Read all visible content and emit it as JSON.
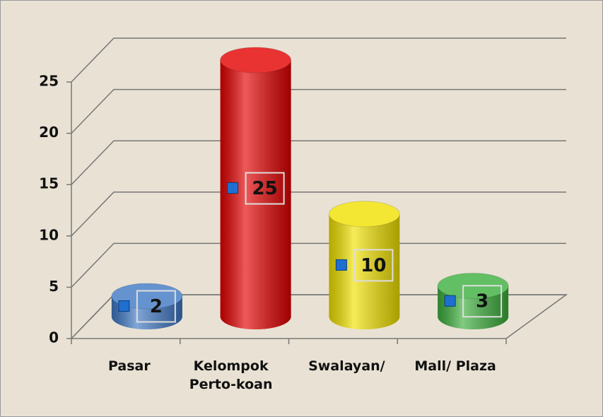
{
  "chart_data": {
    "type": "bar3d",
    "categories": [
      "Pasar",
      "Kelompok Perto-koan",
      "Swalayan/",
      "Mall/ Plaza"
    ],
    "values": [
      2,
      25,
      10,
      3
    ],
    "colors": [
      "#3f78c4",
      "#e40000",
      "#f2e200",
      "#3caf3c"
    ],
    "ylim": [
      0,
      25
    ],
    "yticks": [
      0,
      5,
      10,
      15,
      20,
      25
    ],
    "grid": true
  }
}
